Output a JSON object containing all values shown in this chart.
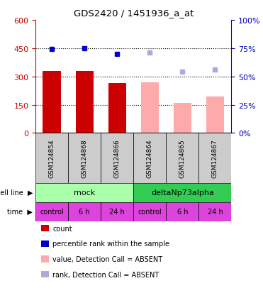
{
  "title": "GDS2420 / 1451936_a_at",
  "samples": [
    "GSM124854",
    "GSM124868",
    "GSM124866",
    "GSM124864",
    "GSM124865",
    "GSM124867"
  ],
  "bar_values": [
    330,
    330,
    265,
    270,
    160,
    195
  ],
  "bar_colors": [
    "#cc0000",
    "#cc0000",
    "#cc0000",
    "#ffaaaa",
    "#ffaaaa",
    "#ffaaaa"
  ],
  "rank_values": [
    74,
    75,
    70,
    71,
    54,
    56
  ],
  "rank_colors": [
    "#0000cc",
    "#0000cc",
    "#0000cc",
    "#aaaadd",
    "#aaaadd",
    "#aaaadd"
  ],
  "ylim_left": [
    0,
    600
  ],
  "ylim_right": [
    0,
    100
  ],
  "left_yticks": [
    0,
    150,
    300,
    450,
    600
  ],
  "right_yticks": [
    0,
    25,
    50,
    75,
    100
  ],
  "cell_line_labels": [
    "mock",
    "deltaNp73alpha"
  ],
  "cell_line_colors": [
    "#aaffaa",
    "#33cc55"
  ],
  "time_labels": [
    "control",
    "6 h",
    "24 h",
    "control",
    "6 h",
    "24 h"
  ],
  "time_color": "#dd44dd",
  "gsm_bg_color": "#cccccc",
  "legend_items": [
    {
      "label": "count",
      "color": "#cc0000"
    },
    {
      "label": "percentile rank within the sample",
      "color": "#0000cc"
    },
    {
      "label": "value, Detection Call = ABSENT",
      "color": "#ffaaaa"
    },
    {
      "label": "rank, Detection Call = ABSENT",
      "color": "#aaaadd"
    }
  ],
  "left_label_color": "#cc0000",
  "right_label_color": "#0000bb",
  "left_row_labels": [
    "cell line",
    "time"
  ]
}
